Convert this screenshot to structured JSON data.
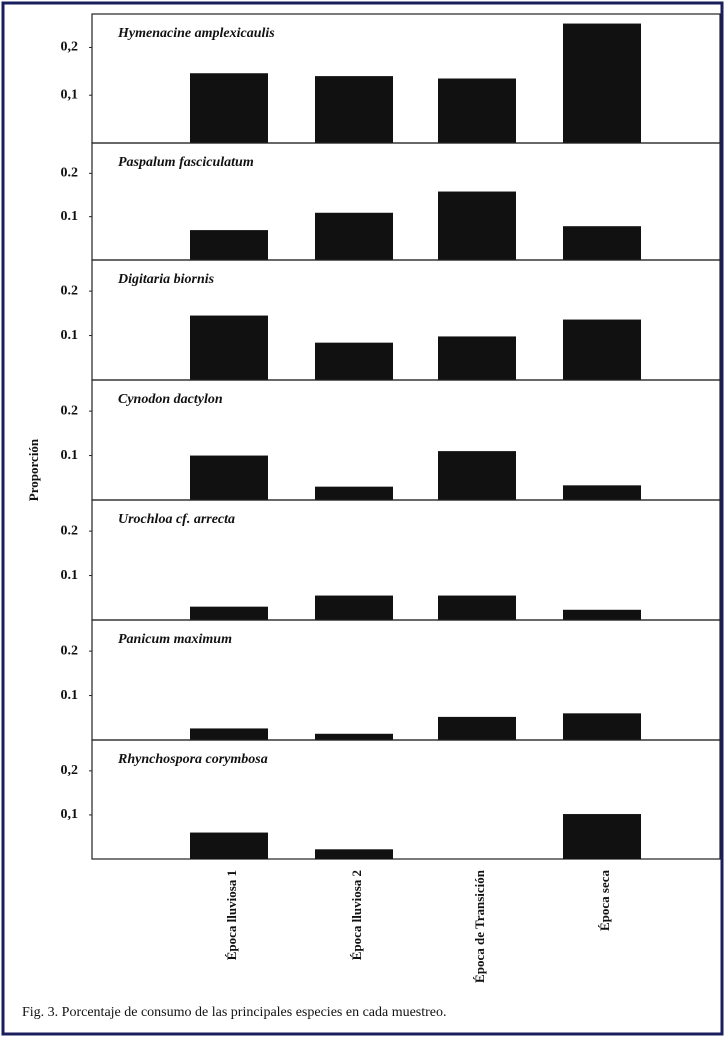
{
  "ylabel": "Proporción",
  "caption": "Fig. 3. Porcentaje de consumo de las principales especies en cada muestreo.",
  "chart_data": [
    {
      "type": "bar",
      "title": "Hymenacine amplexicaulis",
      "values": [
        0.146,
        0.14,
        0.135,
        0.25
      ],
      "color": "#111111",
      "ylim": [
        0,
        0.27
      ],
      "yticks": [
        {
          "value": 0.1,
          "label": "0,1"
        },
        {
          "value": 0.2,
          "label": "0,2"
        }
      ]
    },
    {
      "type": "bar",
      "title": "Paspalum fasciculatum",
      "values": [
        0.069,
        0.109,
        0.158,
        0.078
      ],
      "color": "#111111",
      "ylim": [
        0,
        0.27
      ],
      "yticks": [
        0.1,
        0.2
      ]
    },
    {
      "type": "bar",
      "title": "Digitaria biornis",
      "values": [
        0.145,
        0.084,
        0.098,
        0.136
      ],
      "color": "#111111",
      "ylim": [
        0,
        0.27
      ],
      "yticks": [
        0.1,
        0.2
      ]
    },
    {
      "type": "bar",
      "title": "Cynodon dactylon",
      "values": [
        0.1,
        0.03,
        0.11,
        0.033
      ],
      "color": "#111111",
      "ylim": [
        0,
        0.27
      ],
      "yticks": [
        0.1,
        0.2
      ]
    },
    {
      "type": "bar",
      "title": "Urochloa cf. arrecta",
      "values": [
        0.03,
        0.055,
        0.055,
        0.023
      ],
      "color": "#111111",
      "ylim": [
        0,
        0.27
      ],
      "yticks": [
        0.1,
        0.2
      ]
    },
    {
      "type": "bar",
      "title": "Panicum maximum",
      "values": [
        0.026,
        0.014,
        0.052,
        0.06
      ],
      "color": "#111111",
      "ylim": [
        0,
        0.27
      ],
      "yticks": [
        0.1,
        0.2
      ]
    },
    {
      "type": "bar",
      "title": "Rhynchospora corymbosa",
      "values": [
        0.06,
        0.022,
        0,
        0.102
      ],
      "color": "#111111",
      "ylim": [
        0,
        0.27
      ],
      "yticks": [
        {
          "value": 0.1,
          "label": "0,1"
        },
        {
          "value": 0.2,
          "label": "0,2"
        }
      ],
      "categories": [
        "Época lluviosa 1",
        "Época lluviosa 2",
        "Época de Transición",
        "Época seca"
      ]
    }
  ]
}
